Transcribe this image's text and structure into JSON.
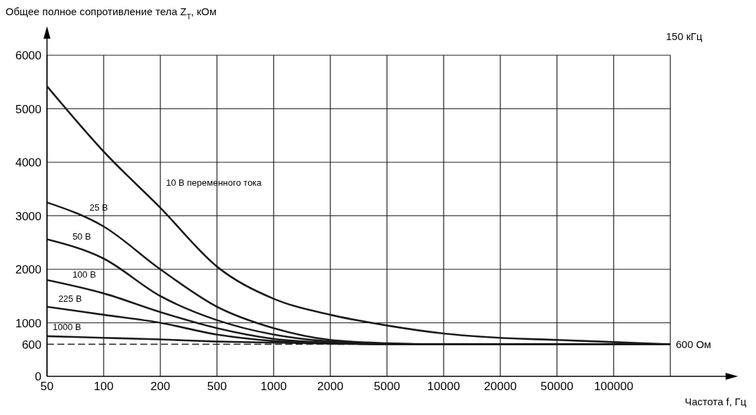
{
  "chart_data": {
    "type": "line",
    "ylabel": "Общее полное сопротивление тела Z$_{T}$, кОм",
    "xlabel": "Частота f, Гц",
    "categories": [
      "50",
      "100",
      "200",
      "500",
      "1000",
      "2000",
      "5000",
      "10000",
      "20000",
      "50000",
      "100000",
      null
    ],
    "ylim": [
      0,
      6000
    ],
    "yticks": [
      0,
      600,
      1000,
      2000,
      3000,
      4000,
      5000,
      6000
    ],
    "grid": true,
    "series": [
      {
        "name": "10 В переменного тока",
        "color": "#1a1a1a",
        "values": [
          5420,
          4200,
          3150,
          2050,
          1450,
          1150,
          950,
          800,
          720,
          680,
          640,
          600
        ]
      },
      {
        "name": "25 В",
        "color": "#1a1a1a",
        "values": [
          3250,
          2800,
          2000,
          1300,
          900,
          680,
          620,
          600,
          600,
          600,
          600,
          600
        ]
      },
      {
        "name": "50 В",
        "color": "#1a1a1a",
        "values": [
          2560,
          2200,
          1500,
          1050,
          780,
          650,
          610,
          600,
          600,
          600,
          600,
          600
        ]
      },
      {
        "name": "100 В",
        "color": "#1a1a1a",
        "values": [
          1800,
          1550,
          1200,
          900,
          700,
          630,
          600,
          600,
          600,
          600,
          600,
          600
        ]
      },
      {
        "name": "225 В",
        "color": "#1a1a1a",
        "values": [
          1300,
          1150,
          1000,
          780,
          660,
          620,
          600,
          600,
          600,
          600,
          600,
          600
        ]
      },
      {
        "name": "1000 В",
        "color": "#1a1a1a",
        "values": [
          750,
          720,
          690,
          650,
          630,
          610,
          600,
          600,
          600,
          600,
          600,
          600
        ]
      }
    ],
    "ref_lines": [
      {
        "axis": "y",
        "value": 600,
        "label": "600 Ом",
        "line_style": "dashed",
        "color": "#1a1a1a"
      }
    ],
    "annotations": [
      "150 кГц"
    ],
    "marker": "none",
    "line_style": "solid"
  }
}
